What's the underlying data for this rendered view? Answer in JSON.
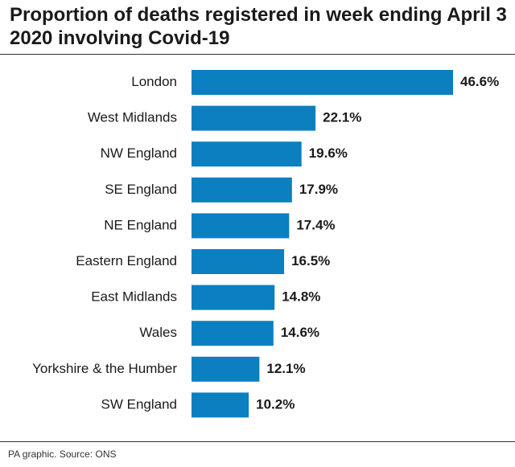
{
  "chart_data": {
    "type": "bar",
    "orientation": "horizontal",
    "title": "Proportion of deaths registered in week ending April 3 2020 involving Covid-19",
    "categories": [
      "London",
      "West Midlands",
      "NW England",
      "SE England",
      "NE England",
      "Eastern England",
      "East Midlands",
      "Wales",
      "Yorkshire & the Humber",
      "SW England"
    ],
    "values": [
      46.6,
      22.1,
      19.6,
      17.9,
      17.4,
      16.5,
      14.8,
      14.6,
      12.1,
      10.2
    ],
    "value_labels": [
      "46.6%",
      "22.1%",
      "19.6%",
      "17.9%",
      "17.4%",
      "16.5%",
      "14.8%",
      "14.6%",
      "12.1%",
      "10.2%"
    ],
    "xlabel": "",
    "ylabel": "",
    "xlim": [
      0,
      46.6
    ],
    "grid": false,
    "legend": "none",
    "bar_color": "#0b7fc0"
  },
  "footer": {
    "source": "PA graphic. Source: ONS"
  }
}
